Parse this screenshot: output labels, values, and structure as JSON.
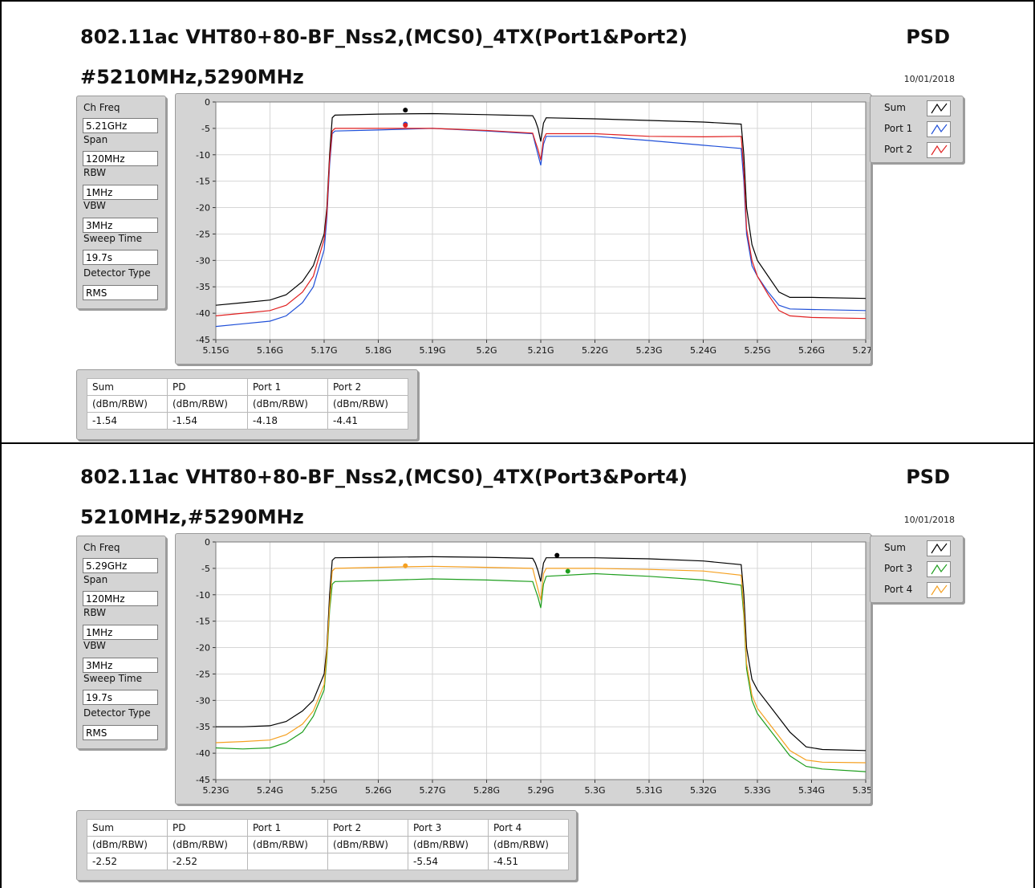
{
  "sections": [
    {
      "title_line1": "802.11ac VHT80+80-BF_Nss2,(MCS0)_4TX(Port1&Port2)",
      "title_line2": "#5210MHz,5290MHz",
      "psd_label": "PSD",
      "date": "10/01/2018",
      "params": [
        {
          "label": "Ch Freq",
          "value": "5.21GHz"
        },
        {
          "label": "Span",
          "value": "120MHz"
        },
        {
          "label": "RBW",
          "value": "1MHz"
        },
        {
          "label": "VBW",
          "value": "3MHz"
        },
        {
          "label": "Sweep Time",
          "value": "19.7s"
        },
        {
          "label": "Detector Type",
          "value": "RMS"
        }
      ],
      "legend": [
        {
          "name": "Sum",
          "color": "#000000"
        },
        {
          "name": "Port 1",
          "color": "#1f4fd8"
        },
        {
          "name": "Port 2",
          "color": "#e02020"
        }
      ],
      "table": {
        "headers": [
          "Sum",
          "PD",
          "Port 1",
          "Port 2"
        ],
        "units": [
          "(dBm/RBW)",
          "(dBm/RBW)",
          "(dBm/RBW)",
          "(dBm/RBW)"
        ],
        "values": [
          "-1.54",
          "-1.54",
          "-4.18",
          "-4.41"
        ]
      }
    },
    {
      "title_line1": "802.11ac VHT80+80-BF_Nss2,(MCS0)_4TX(Port3&Port4)",
      "title_line2": "5210MHz,#5290MHz",
      "psd_label": "PSD",
      "date": "10/01/2018",
      "params": [
        {
          "label": "Ch Freq",
          "value": "5.29GHz"
        },
        {
          "label": "Span",
          "value": "120MHz"
        },
        {
          "label": "RBW",
          "value": "1MHz"
        },
        {
          "label": "VBW",
          "value": "3MHz"
        },
        {
          "label": "Sweep Time",
          "value": "19.7s"
        },
        {
          "label": "Detector Type",
          "value": "RMS"
        }
      ],
      "legend": [
        {
          "name": "Sum",
          "color": "#000000"
        },
        {
          "name": "Port 3",
          "color": "#1e9e1e"
        },
        {
          "name": "Port 4",
          "color": "#f5a020"
        }
      ],
      "table": {
        "headers": [
          "Sum",
          "PD",
          "Port 1",
          "Port 2",
          "Port 3",
          "Port 4"
        ],
        "units": [
          "(dBm/RBW)",
          "(dBm/RBW)",
          "(dBm/RBW)",
          "(dBm/RBW)",
          "(dBm/RBW)",
          "(dBm/RBW)"
        ],
        "values": [
          "-2.52",
          "-2.52",
          "",
          "",
          "-5.54",
          "-4.51"
        ]
      }
    }
  ],
  "chart_data": [
    {
      "type": "line",
      "x_unit": "GHz",
      "xlim": [
        5.15,
        5.27
      ],
      "ylim": [
        -45,
        0
      ],
      "x_ticks": [
        "5.15G",
        "5.16G",
        "5.17G",
        "5.18G",
        "5.19G",
        "5.2G",
        "5.21G",
        "5.22G",
        "5.23G",
        "5.24G",
        "5.25G",
        "5.26G",
        "5.27G"
      ],
      "y_ticks": [
        "0",
        "-5",
        "-10",
        "-15",
        "-20",
        "-25",
        "-30",
        "-35",
        "-40",
        "-45"
      ],
      "grid": true,
      "series": [
        {
          "name": "Sum",
          "color": "#000000",
          "x": [
            5.15,
            5.155,
            5.16,
            5.163,
            5.166,
            5.168,
            5.17,
            5.1705,
            5.171,
            5.1715,
            5.172,
            5.18,
            5.19,
            5.2,
            5.2085,
            5.209,
            5.2095,
            5.21,
            5.2105,
            5.211,
            5.22,
            5.23,
            5.24,
            5.247,
            5.2475,
            5.248,
            5.249,
            5.25,
            5.252,
            5.254,
            5.256,
            5.26,
            5.27
          ],
          "y": [
            -38.5,
            -38,
            -37.5,
            -36.5,
            -34,
            -31,
            -25,
            -20,
            -10,
            -3,
            -2.5,
            -2.3,
            -2.2,
            -2.4,
            -2.6,
            -3.5,
            -5,
            -7.5,
            -4,
            -3,
            -3.2,
            -3.5,
            -3.8,
            -4.2,
            -10,
            -20,
            -27,
            -30,
            -33,
            -36,
            -37,
            -37,
            -37.2
          ],
          "marker": {
            "x": 5.185,
            "y": -1.54
          }
        },
        {
          "name": "Port 1",
          "color": "#1f4fd8",
          "x": [
            5.15,
            5.155,
            5.16,
            5.163,
            5.166,
            5.168,
            5.17,
            5.1705,
            5.171,
            5.1715,
            5.172,
            5.18,
            5.19,
            5.2,
            5.2085,
            5.209,
            5.2095,
            5.21,
            5.2105,
            5.211,
            5.22,
            5.23,
            5.24,
            5.247,
            5.2475,
            5.248,
            5.249,
            5.25,
            5.252,
            5.254,
            5.256,
            5.26,
            5.27
          ],
          "y": [
            -42.5,
            -42,
            -41.5,
            -40.5,
            -38,
            -35,
            -28,
            -22,
            -12,
            -6,
            -5.5,
            -5.3,
            -5,
            -5.5,
            -6,
            -8,
            -10,
            -12,
            -8,
            -6.5,
            -6.5,
            -7.3,
            -8.2,
            -8.8,
            -15,
            -25,
            -31,
            -33,
            -36,
            -38.5,
            -39.2,
            -39.3,
            -39.5
          ],
          "marker": {
            "x": 5.185,
            "y": -4.18
          }
        },
        {
          "name": "Port 2",
          "color": "#e02020",
          "x": [
            5.15,
            5.155,
            5.16,
            5.163,
            5.166,
            5.168,
            5.17,
            5.1705,
            5.171,
            5.1715,
            5.172,
            5.18,
            5.19,
            5.2,
            5.2085,
            5.209,
            5.2095,
            5.21,
            5.2105,
            5.211,
            5.22,
            5.23,
            5.24,
            5.247,
            5.2475,
            5.248,
            5.249,
            5.25,
            5.252,
            5.254,
            5.256,
            5.26,
            5.27
          ],
          "y": [
            -40.5,
            -40,
            -39.5,
            -38.5,
            -36,
            -33,
            -26,
            -21,
            -11,
            -5.5,
            -5,
            -5,
            -5,
            -5.4,
            -5.9,
            -7.5,
            -9,
            -11,
            -7,
            -6,
            -6,
            -6.5,
            -6.6,
            -6.5,
            -13,
            -24,
            -30,
            -33,
            -36.5,
            -39.5,
            -40.5,
            -40.8,
            -41
          ],
          "marker": {
            "x": 5.185,
            "y": -4.41
          }
        }
      ]
    },
    {
      "type": "line",
      "x_unit": "GHz",
      "xlim": [
        5.23,
        5.35
      ],
      "ylim": [
        -45,
        0
      ],
      "x_ticks": [
        "5.23G",
        "5.24G",
        "5.25G",
        "5.26G",
        "5.27G",
        "5.28G",
        "5.29G",
        "5.3G",
        "5.31G",
        "5.32G",
        "5.33G",
        "5.34G",
        "5.35G"
      ],
      "y_ticks": [
        "0",
        "-5",
        "-10",
        "-15",
        "-20",
        "-25",
        "-30",
        "-35",
        "-40",
        "-45"
      ],
      "grid": true,
      "series": [
        {
          "name": "Sum",
          "color": "#000000",
          "x": [
            5.23,
            5.235,
            5.24,
            5.243,
            5.246,
            5.248,
            5.25,
            5.2505,
            5.251,
            5.2515,
            5.252,
            5.26,
            5.27,
            5.28,
            5.2885,
            5.289,
            5.2895,
            5.29,
            5.2905,
            5.291,
            5.3,
            5.31,
            5.32,
            5.327,
            5.3275,
            5.328,
            5.329,
            5.33,
            5.333,
            5.336,
            5.339,
            5.342,
            5.35
          ],
          "y": [
            -35,
            -35,
            -34.8,
            -34,
            -32,
            -30,
            -25,
            -20,
            -10,
            -3.5,
            -3,
            -2.9,
            -2.8,
            -2.9,
            -3.1,
            -4,
            -5.5,
            -7.5,
            -4,
            -3,
            -3,
            -3.2,
            -3.6,
            -4.3,
            -10,
            -20,
            -26,
            -28,
            -32,
            -36,
            -38.8,
            -39.3,
            -39.5
          ],
          "marker": {
            "x": 5.293,
            "y": -2.52
          }
        },
        {
          "name": "Port 3",
          "color": "#1e9e1e",
          "x": [
            5.23,
            5.235,
            5.24,
            5.243,
            5.246,
            5.248,
            5.25,
            5.2505,
            5.251,
            5.2515,
            5.252,
            5.26,
            5.27,
            5.28,
            5.2885,
            5.289,
            5.2895,
            5.29,
            5.2905,
            5.291,
            5.3,
            5.31,
            5.32,
            5.327,
            5.3275,
            5.328,
            5.329,
            5.33,
            5.333,
            5.336,
            5.339,
            5.342,
            5.35
          ],
          "y": [
            -39,
            -39.2,
            -39,
            -38,
            -36,
            -33,
            -28,
            -22,
            -13,
            -8,
            -7.5,
            -7.3,
            -7,
            -7.2,
            -7.5,
            -9,
            -10.5,
            -12.5,
            -8,
            -6.5,
            -6,
            -6.5,
            -7.2,
            -8.2,
            -14,
            -24,
            -30,
            -32.5,
            -36.5,
            -40.5,
            -42.5,
            -43,
            -43.5
          ],
          "marker": {
            "x": 5.295,
            "y": -5.54
          }
        },
        {
          "name": "Port 4",
          "color": "#f5a020",
          "x": [
            5.23,
            5.235,
            5.24,
            5.243,
            5.246,
            5.248,
            5.25,
            5.2505,
            5.251,
            5.2515,
            5.252,
            5.26,
            5.27,
            5.28,
            5.2885,
            5.289,
            5.2895,
            5.29,
            5.2905,
            5.291,
            5.3,
            5.31,
            5.32,
            5.327,
            5.3275,
            5.328,
            5.329,
            5.33,
            5.333,
            5.336,
            5.339,
            5.342,
            5.35
          ],
          "y": [
            -38,
            -37.8,
            -37.5,
            -36.5,
            -34.5,
            -32,
            -27,
            -21,
            -12,
            -5.5,
            -5,
            -4.8,
            -4.6,
            -4.8,
            -5,
            -7,
            -9,
            -11,
            -6,
            -5,
            -5,
            -5.2,
            -5.5,
            -6.3,
            -13,
            -23,
            -29,
            -31.5,
            -35.5,
            -39.5,
            -41.3,
            -41.7,
            -41.8
          ],
          "marker": {
            "x": 5.265,
            "y": -4.51
          }
        }
      ]
    }
  ]
}
